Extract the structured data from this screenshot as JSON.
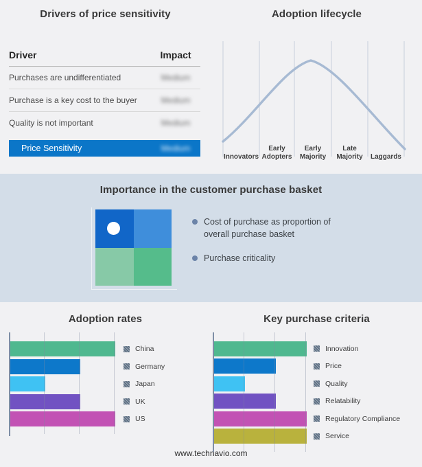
{
  "page": {
    "background": "#f1f1f3",
    "mid_band_background": "#d3dde8",
    "footer_text": "www.technavio.com"
  },
  "drivers_panel": {
    "title": "Drivers of price sensitivity",
    "table": {
      "headers": {
        "driver": "Driver",
        "impact": "Impact"
      },
      "rows": [
        {
          "driver": "Purchases are undifferentiated",
          "impact": "Medium",
          "impact_blurred": true
        },
        {
          "driver": "Purchase is a key cost to the buyer",
          "impact": "Medium",
          "impact_blurred": true
        },
        {
          "driver": "Quality is not important",
          "impact": "Medium",
          "impact_blurred": true
        }
      ],
      "highlight_row": {
        "driver": "Price Sensitivity",
        "impact": "Medium",
        "impact_blurred": true,
        "background": "#0b76c8",
        "text_color": "#ffffff"
      }
    }
  },
  "lifecycle_panel": {
    "title": "Adoption lifecycle",
    "curve_color": "#a7bad3",
    "gridline_color": "#c6cedb",
    "stages": [
      "Innovators",
      "Early Adopters",
      "Early Majority",
      "Late Majority",
      "Laggards"
    ]
  },
  "basket_panel": {
    "title": "Importance in the customer purchase basket",
    "quadrant_colors": {
      "top_left": "#1166c8",
      "top_right": "#3f8edb",
      "bottom_left": "#87c9a7",
      "bottom_right": "#55bc8b"
    },
    "marker_icon": "white-dot",
    "bullet_icon": "bullet-dot",
    "bullet_color": "#6b83a8",
    "legend": [
      "Cost of purchase as proportion of overall purchase basket",
      "Purchase criticality"
    ]
  },
  "adoption_rates_panel": {
    "title": "Adoption rates",
    "legend_marker_icon": "hatched-square-marker"
  },
  "key_criteria_panel": {
    "title": "Key purchase criteria",
    "legend_marker_icon": "hatched-square-marker"
  },
  "chart_data": [
    {
      "type": "line",
      "title": "Adoption lifecycle",
      "categories": [
        "Innovators",
        "Early Adopters",
        "Early Majority",
        "Late Majority",
        "Laggards"
      ],
      "shape": "bell curve peaking over Early Majority, no numeric axes",
      "grid": "vertical segment dividers",
      "curve_color": "#a7bad3"
    },
    {
      "type": "bar",
      "orientation": "horizontal",
      "title": "Adoption rates",
      "categories": [
        "China",
        "Germany",
        "Japan",
        "UK",
        "US"
      ],
      "values": [
        3,
        2,
        1,
        2,
        3
      ],
      "colors": [
        "#4fb88f",
        "#0d78ca",
        "#3fc2f3",
        "#7152c2",
        "#c252b4"
      ],
      "xlim": [
        0,
        3.3
      ],
      "xlabel": "",
      "ylabel": "",
      "grid": "vertical gridlines at 1,2,3 (unlabeled)",
      "legend_position": "right"
    },
    {
      "type": "bar",
      "orientation": "horizontal",
      "title": "Key purchase criteria",
      "categories": [
        "Innovation",
        "Price",
        "Quality",
        "Relatability",
        "Regulatory Compliance",
        "Service"
      ],
      "values": [
        3,
        2,
        1,
        2,
        3,
        3
      ],
      "colors": [
        "#4fb88f",
        "#0d78ca",
        "#3fc2f3",
        "#7152c2",
        "#c252b4",
        "#b9b23d"
      ],
      "xlim": [
        0,
        3.1
      ],
      "xlabel": "",
      "ylabel": "",
      "grid": "vertical gridlines at 1,2,3 (unlabeled)",
      "legend_position": "right"
    }
  ]
}
